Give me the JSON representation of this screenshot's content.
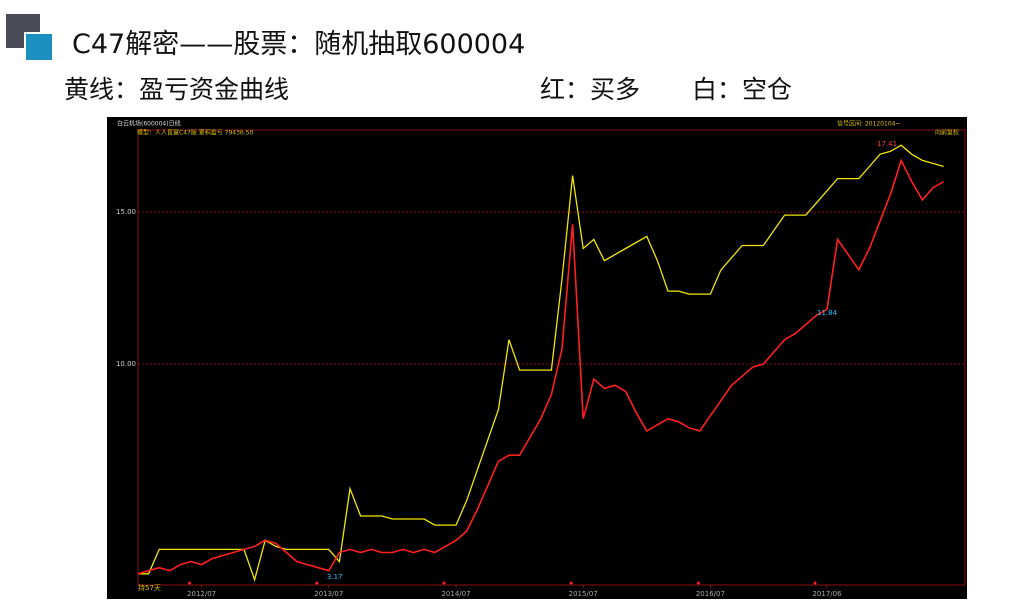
{
  "slide": {
    "title": "C47解密——股票：随机抽取600004",
    "legend_yellow": "黄线：盈亏资金曲线",
    "legend_red": "红：买多",
    "legend_white": "白：空仓"
  },
  "chart_data": {
    "type": "line",
    "header": [
      "白云机场(600004)日线",
      "模型：人人皆富C47版  累积盈亏 79436.50",
      "信号区间: 20120104~",
      "向前复权"
    ],
    "annotations": [
      "17.41",
      "11.84",
      "3.17",
      "持57天"
    ],
    "categories": [
      null,
      null,
      null,
      null,
      null,
      null,
      "2012/07",
      null,
      null,
      null,
      null,
      null,
      null,
      null,
      null,
      null,
      null,
      null,
      "2013/07",
      null,
      null,
      null,
      null,
      null,
      null,
      null,
      null,
      null,
      null,
      null,
      "2014/07",
      null,
      null,
      null,
      null,
      null,
      null,
      null,
      null,
      null,
      null,
      null,
      "2015/07",
      null,
      null,
      null,
      null,
      null,
      null,
      null,
      null,
      null,
      null,
      null,
      "2016/07",
      null,
      null,
      null,
      null,
      null,
      null,
      null,
      null,
      null,
      null,
      "2017/06",
      null,
      null,
      null,
      null,
      null,
      null,
      null,
      null,
      null,
      null,
      null
    ],
    "series": [
      {
        "name": "黄线：盈亏资金曲线",
        "color": "#f2e600",
        "values": [
          3.1,
          3.1,
          3.9,
          3.9,
          3.9,
          3.9,
          3.9,
          3.9,
          3.9,
          3.9,
          3.9,
          2.9,
          4.2,
          4.0,
          3.9,
          3.9,
          3.9,
          3.9,
          3.9,
          3.5,
          5.9,
          5.0,
          5.0,
          5.0,
          4.9,
          4.9,
          4.9,
          4.9,
          4.7,
          4.7,
          4.7,
          5.5,
          6.5,
          7.5,
          8.5,
          10.8,
          9.8,
          9.8,
          9.8,
          9.8,
          12.8,
          16.2,
          13.8,
          14.1,
          13.4,
          13.6,
          13.8,
          14.0,
          14.2,
          13.4,
          12.4,
          12.4,
          12.3,
          12.3,
          12.3,
          13.1,
          13.5,
          13.9,
          13.9,
          13.9,
          14.4,
          14.9,
          14.9,
          14.9,
          15.3,
          15.7,
          16.1,
          16.1,
          16.1,
          16.5,
          16.9,
          17.0,
          17.2,
          16.9,
          16.7,
          16.6,
          16.5
        ]
      },
      {
        "name": "红：买多",
        "color": "#ff2020",
        "values": [
          3.1,
          3.2,
          3.3,
          3.2,
          3.4,
          3.5,
          3.4,
          3.6,
          3.7,
          3.8,
          3.9,
          4.0,
          4.2,
          4.1,
          3.8,
          3.5,
          3.4,
          3.3,
          3.2,
          3.8,
          3.9,
          3.8,
          3.9,
          3.8,
          3.8,
          3.9,
          3.8,
          3.9,
          3.8,
          4.0,
          4.2,
          4.5,
          5.2,
          6.0,
          6.8,
          7.0,
          7.0,
          7.6,
          8.2,
          9.0,
          10.5,
          14.6,
          8.2,
          9.5,
          9.2,
          9.3,
          9.1,
          8.4,
          7.8,
          8.0,
          8.2,
          8.1,
          7.9,
          7.8,
          8.3,
          8.8,
          9.3,
          9.6,
          9.9,
          10.0,
          10.4,
          10.8,
          11.0,
          11.3,
          11.6,
          11.8,
          14.1,
          13.6,
          13.1,
          13.8,
          14.7,
          15.6,
          16.7,
          16.0,
          15.4,
          15.8,
          16.0
        ]
      }
    ],
    "ylim": [
      2.73,
      17.7
    ],
    "yticks": [
      {
        "value": 10,
        "label": "10.00"
      },
      {
        "value": 15,
        "label": "15.00"
      }
    ],
    "grid": true
  }
}
